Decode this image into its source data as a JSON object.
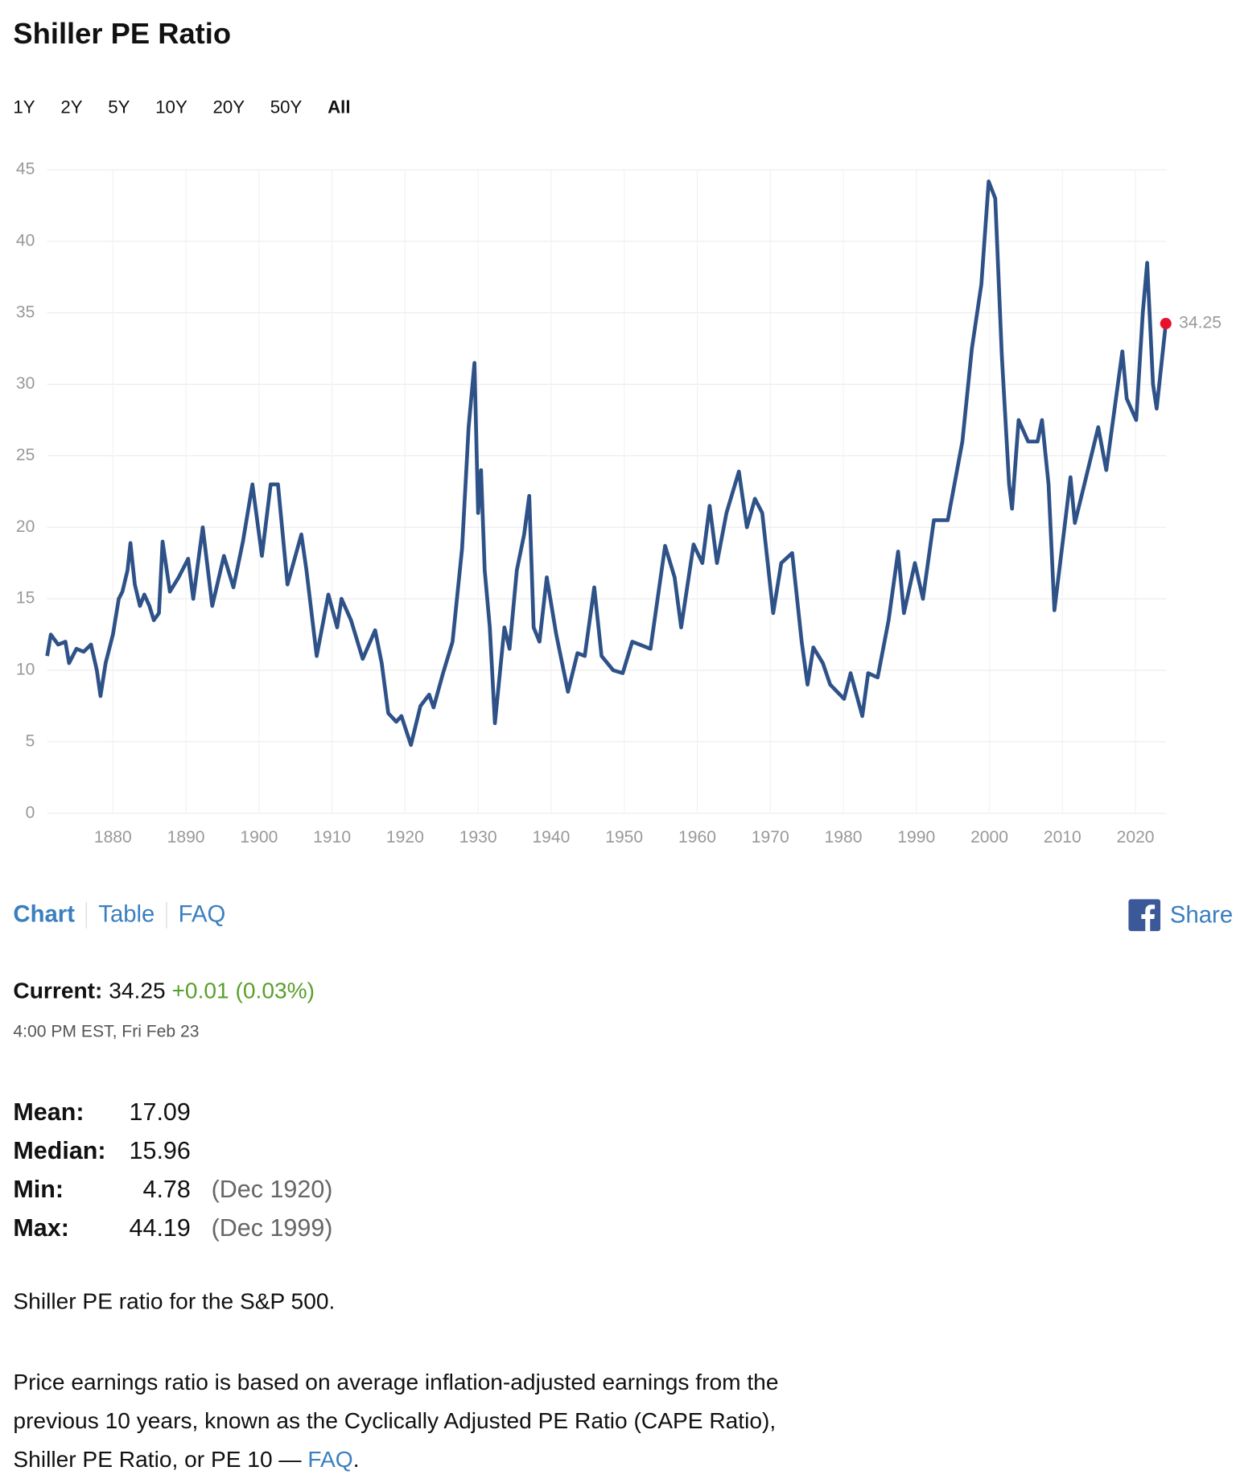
{
  "page": {
    "title": "Shiller PE Ratio",
    "ranges": [
      "1Y",
      "2Y",
      "5Y",
      "10Y",
      "20Y",
      "50Y",
      "All"
    ],
    "active_range": "All",
    "tabs": [
      "Chart",
      "Table",
      "FAQ"
    ],
    "active_tab": "Chart",
    "share": "Share",
    "current": {
      "label": "Current:",
      "value": "34.25",
      "change": "+0.01 (0.03%)",
      "time": "4:00 PM EST, Fri Feb 23"
    },
    "stats": [
      {
        "label": "Mean:",
        "value": "17.09"
      },
      {
        "label": "Median:",
        "value": "15.96"
      },
      {
        "label": "Min:",
        "value": "4.78",
        "date": "(Dec 1920)"
      },
      {
        "label": "Max:",
        "value": "44.19",
        "date": "(Dec 1999)"
      }
    ],
    "description": "Shiller PE ratio for the S&P 500.",
    "explanation": {
      "text": "Price earnings ratio is based on average inflation-adjusted earnings from the previous 10 years, known as the Cyclically Adjusted PE Ratio (CAPE Ratio), Shiller PE Ratio, or PE 10 — ",
      "link": "FAQ",
      "end": "."
    }
  },
  "chart_data": {
    "type": "line",
    "color": "#2e5288",
    "end_color": "#e8112d",
    "grid": true,
    "x": [
      1871,
      1871.5,
      1872.5,
      1873.5,
      1874,
      1875,
      1876,
      1877,
      1877.8,
      1878.3,
      1879,
      1880,
      1880.8,
      1881.3,
      1882,
      1882.4,
      1883,
      1883.7,
      1884.3,
      1885,
      1885.6,
      1886.3,
      1886.8,
      1887.8,
      1889,
      1890.3,
      1891,
      1892.3,
      1893.6,
      1895.2,
      1896.5,
      1897.8,
      1899.1,
      1900.4,
      1901.6,
      1902.6,
      1903.9,
      1905.8,
      1906.5,
      1907.9,
      1909.5,
      1910.7,
      1911.3,
      1912.6,
      1914.2,
      1915.9,
      1916.8,
      1917.7,
      1918.8,
      1919.5,
      1920.8,
      1922.1,
      1923.3,
      1923.9,
      1925.2,
      1926.5,
      1927.8,
      1928.7,
      1929.5,
      1930,
      1930.4,
      1930.9,
      1931.6,
      1932.3,
      1933.6,
      1934.3,
      1935.3,
      1936.3,
      1937,
      1937.6,
      1938.4,
      1939.4,
      1940.7,
      1942.3,
      1943.6,
      1944.6,
      1945.9,
      1946.9,
      1948.5,
      1949.8,
      1951.1,
      1953.6,
      1955.6,
      1956.9,
      1957.8,
      1959.5,
      1960.7,
      1961.7,
      1962.7,
      1964,
      1965.7,
      1966.8,
      1967.9,
      1968.9,
      1970.4,
      1971.5,
      1973,
      1974.3,
      1975.1,
      1975.9,
      1977.2,
      1978.2,
      1980.1,
      1981,
      1982.6,
      1983.4,
      1984.7,
      1986.2,
      1987.5,
      1988.3,
      1989.8,
      1990.9,
      1992.4,
      1994.3,
      1996.3,
      1997.6,
      1998.9,
      1999.9,
      2000.8,
      2001.7,
      2002.7,
      2003.1,
      2004,
      2005.3,
      2006.6,
      2007.2,
      2008.1,
      2008.9,
      2010.4,
      2011.1,
      2011.7,
      2013,
      2014.9,
      2016,
      2018.2,
      2018.8,
      2020.1,
      2021,
      2021.6,
      2022.4,
      2022.9,
      2024.15
    ],
    "values": [
      11,
      12.5,
      11.8,
      12,
      10.5,
      11.5,
      11.3,
      11.8,
      10,
      8.2,
      10.5,
      12.5,
      15,
      15.5,
      17,
      18.9,
      16,
      14.5,
      15.3,
      14.5,
      13.5,
      14,
      19,
      15.5,
      16.5,
      17.8,
      15,
      20,
      14.5,
      18,
      15.8,
      19,
      23,
      18,
      23,
      23,
      16,
      19.5,
      17,
      11,
      15.3,
      13,
      15,
      13.5,
      10.8,
      12.8,
      10.5,
      7,
      6.4,
      6.8,
      4.78,
      7.5,
      8.3,
      7.4,
      9.8,
      12,
      18.5,
      27,
      31.5,
      21,
      24,
      17,
      13,
      6.3,
      13,
      11.5,
      17,
      19.5,
      22.2,
      13,
      12,
      16.5,
      12.5,
      8.5,
      11.2,
      11,
      15.8,
      11,
      10,
      9.8,
      12,
      11.5,
      18.7,
      16.5,
      13,
      18.8,
      17.5,
      21.5,
      17.5,
      21,
      23.9,
      20,
      22,
      21,
      14,
      17.5,
      18.2,
      12,
      9,
      11.6,
      10.5,
      9,
      8,
      9.8,
      6.8,
      9.8,
      9.5,
      13.5,
      18.3,
      14,
      17.5,
      15,
      20.5,
      20.5,
      26,
      32.5,
      37,
      44.19,
      43,
      32,
      23,
      21.3,
      27.5,
      26,
      26,
      27.5,
      23,
      14.2,
      20.5,
      23.5,
      20.3,
      23,
      27,
      24,
      32.3,
      29,
      27.5,
      35,
      38.5,
      30,
      28.3,
      34.25
    ],
    "xlim": [
      1871,
      2024.2
    ],
    "xticks": [
      1880,
      1890,
      1900,
      1910,
      1920,
      1930,
      1940,
      1950,
      1960,
      1970,
      1980,
      1990,
      2000,
      2010,
      2020
    ],
    "ylim": [
      0,
      45
    ],
    "yticks": [
      0,
      5,
      10,
      15,
      20,
      25,
      30,
      35,
      40,
      45
    ]
  }
}
